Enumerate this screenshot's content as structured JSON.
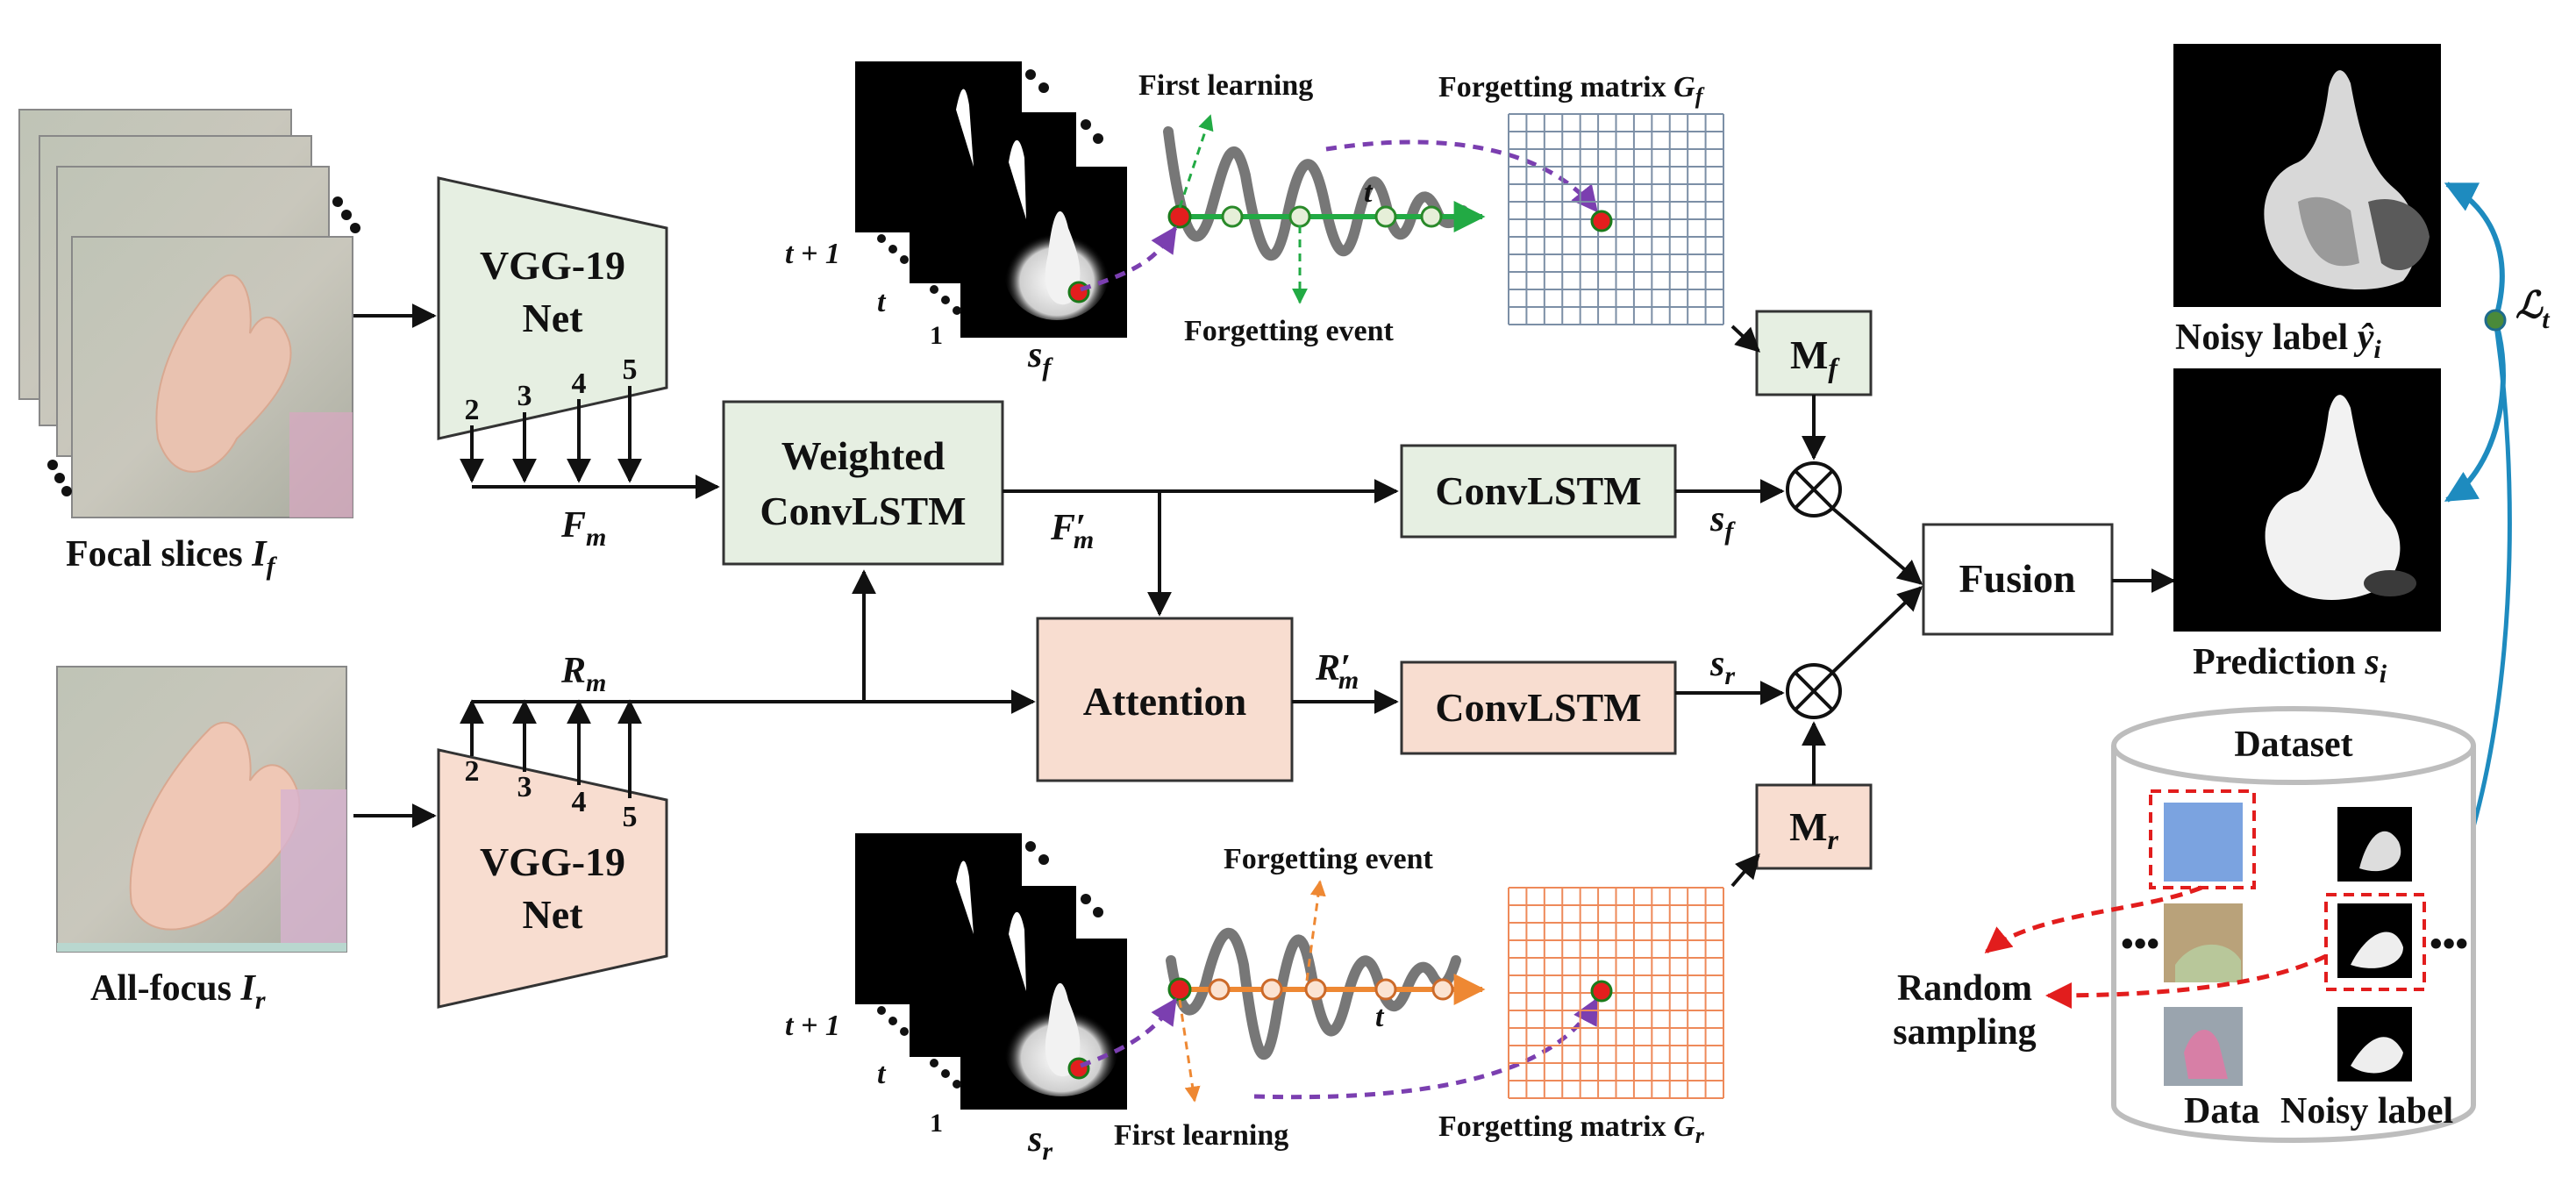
{
  "focal": {
    "caption_prefix": "Focal slices ",
    "caption_var": "I",
    "caption_sub": "f"
  },
  "allfocus": {
    "caption_prefix": "All-focus ",
    "caption_var": "I",
    "caption_sub": "r"
  },
  "vgg_top": {
    "line1": "VGG-19",
    "line2": "Net",
    "taps": [
      "2",
      "3",
      "4",
      "5"
    ],
    "feat_var": "F",
    "feat_sub": "m"
  },
  "vgg_bottom": {
    "line1": "VGG-19",
    "line2": "Net",
    "taps": [
      "2",
      "3",
      "4",
      "5"
    ],
    "feat_var": "R",
    "feat_sub": "m"
  },
  "weighted": {
    "line1": "Weighted",
    "line2": "ConvLSTM"
  },
  "attention": {
    "label": "Attention"
  },
  "convlstm_top": {
    "label": "ConvLSTM",
    "out_var": "s",
    "out_sub": "f"
  },
  "convlstm_bottom": {
    "label": "ConvLSTM",
    "out_var": "s",
    "out_sub": "r"
  },
  "fm_prime": {
    "var": "F",
    "prime": "′",
    "sub": "m"
  },
  "rm_prime": {
    "var": "R",
    "prime": "′",
    "sub": "m"
  },
  "mf": {
    "main": "M",
    "sub": "f"
  },
  "mr": {
    "main": "M",
    "sub": "r"
  },
  "fusion": {
    "label": "Fusion"
  },
  "top_stack": {
    "labels": [
      "t + 1",
      "t",
      "1"
    ],
    "caption_var": "s",
    "caption_sub": "f",
    "first_learning": "First learning",
    "forgetting_event": "Forgetting event",
    "t_label": "t",
    "matrix_prefix": "Forgetting matrix ",
    "matrix_var": "G",
    "matrix_sub": "f"
  },
  "bottom_stack": {
    "labels": [
      "t + 1",
      "t",
      "1"
    ],
    "caption_var": "s",
    "caption_sub": "r",
    "first_learning": "First learning",
    "forgetting_event": "Forgetting event",
    "t_label": "t",
    "matrix_prefix": "Forgetting matrix ",
    "matrix_var": "G",
    "matrix_sub": "r"
  },
  "noisy": {
    "prefix": "Noisy label ",
    "var": "ŷ",
    "sub": "i"
  },
  "prediction": {
    "prefix": "Prediction ",
    "var": "s",
    "sub": "i"
  },
  "loss": {
    "symbol": "ℒ",
    "sub": "t"
  },
  "dataset": {
    "title": "Dataset",
    "col_data": "Data",
    "col_noisy": "Noisy label",
    "ellipsis_left": "•••",
    "ellipsis_right": "•••"
  },
  "random_sampling": {
    "line1": "Random",
    "line2": "sampling"
  },
  "colors": {
    "green_fill": "#e6efe2",
    "pink_fill": "#f8ddd0",
    "green_curve": "#22aa44",
    "orange_curve": "#ee8833",
    "purple": "#7b3fb0",
    "blue": "#1e8bbf",
    "red_dash": "#e21d1d",
    "grid_top": "#7c8fa6",
    "grid_bottom": "#ee8a5a"
  }
}
